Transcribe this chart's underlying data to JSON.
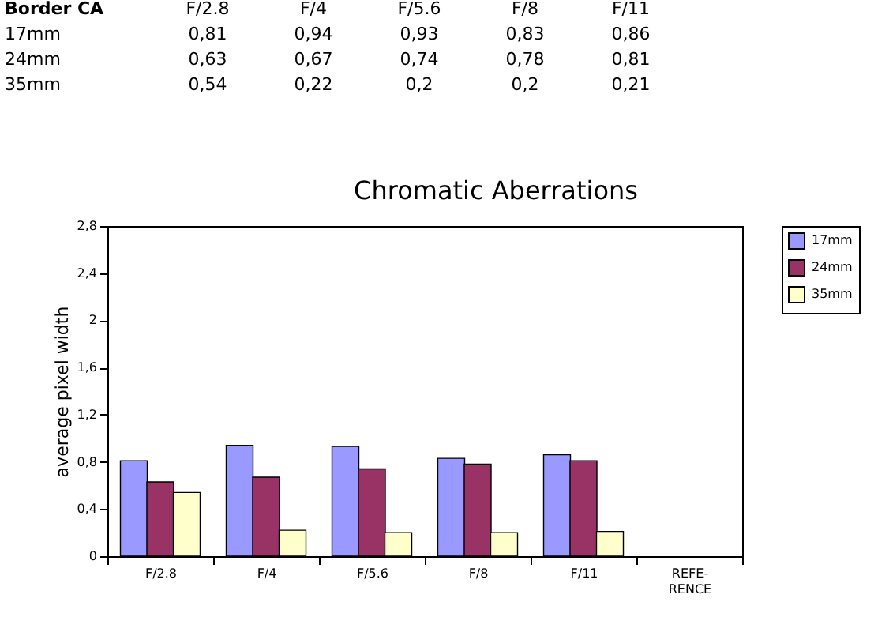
{
  "chart_data": {
    "type": "bar",
    "title": "Chromatic Aberrations",
    "ylabel": "average pixel width",
    "annotations": [
      "Border CA"
    ],
    "categories": [
      "F/2.8",
      "F/4",
      "F/5.6",
      "F/8",
      "F/11",
      "REFE-\nRENCE"
    ],
    "series": [
      {
        "name": "17mm",
        "color": "#9999ff",
        "values": [
          0.81,
          0.94,
          0.93,
          0.83,
          0.86,
          null
        ],
        "value_labels": [
          "0,81",
          "0,94",
          "0,93",
          "0,83",
          "0,86",
          null
        ]
      },
      {
        "name": "24mm",
        "color": "#993366",
        "values": [
          0.63,
          0.67,
          0.74,
          0.78,
          0.81,
          null
        ],
        "value_labels": [
          "0,63",
          "0,67",
          "0,74",
          "0,78",
          "0,81",
          null
        ]
      },
      {
        "name": "35mm",
        "color": "#ffffcc",
        "values": [
          0.54,
          0.22,
          0.2,
          0.2,
          0.21,
          null
        ],
        "value_labels": [
          "0,54",
          "0,22",
          "0,2",
          "0,2",
          "0,21",
          null
        ]
      }
    ],
    "ylim": [
      0,
      2.8
    ],
    "yticks": [
      0,
      {
        "value": 0.4,
        "label": "0,4"
      },
      {
        "value": 0.8,
        "label": "0,8"
      },
      {
        "value": 1.2,
        "label": "1,2"
      },
      {
        "value": 1.6,
        "label": "1,6"
      },
      2,
      {
        "value": 2.4,
        "label": "2,4"
      },
      {
        "value": 2.8,
        "label": "2,8"
      }
    ],
    "grid": false,
    "legend": "right"
  }
}
